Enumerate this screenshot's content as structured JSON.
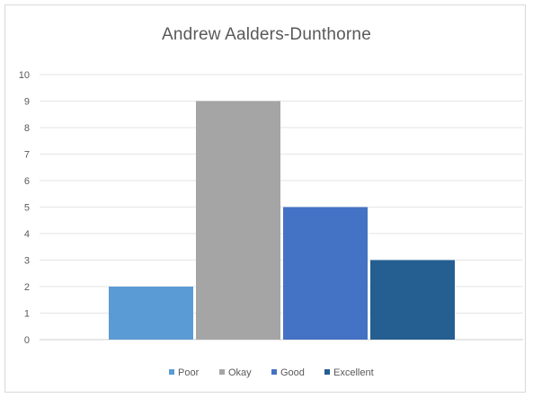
{
  "chart_data": {
    "type": "bar",
    "title": "Andrew Aalders-Dunthorne",
    "xlabel": "",
    "ylabel": "",
    "ylim": [
      0,
      10
    ],
    "yticks": [
      0,
      1,
      2,
      3,
      4,
      5,
      6,
      7,
      8,
      9,
      10
    ],
    "grid": true,
    "legend_position": "bottom",
    "series": [
      {
        "name": "Poor",
        "value": 2,
        "color": "#5b9bd5"
      },
      {
        "name": "Okay",
        "value": 9,
        "color": "#a5a5a5"
      },
      {
        "name": "Good",
        "value": 5,
        "color": "#4472c4"
      },
      {
        "name": "Excellent",
        "value": 3,
        "color": "#255e91"
      }
    ]
  }
}
